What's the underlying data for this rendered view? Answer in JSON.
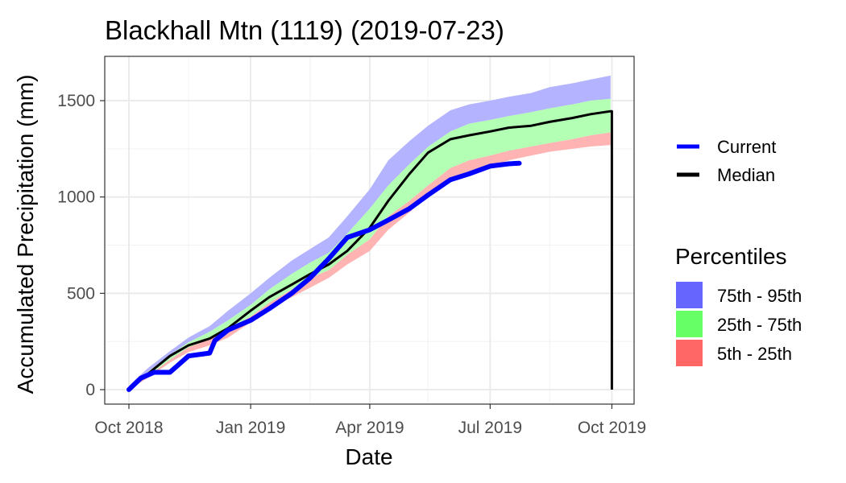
{
  "chart_data": {
    "type": "area",
    "title": "Blackhall Mtn (1119) (2019-07-23)",
    "xlabel": "Date",
    "ylabel": "Accumulated Precipitation (mm)",
    "x_range": [
      "2018-10-01",
      "2019-10-05"
    ],
    "ylim": [
      -75,
      1730
    ],
    "x_ticks": [
      {
        "date": "2018-10-01",
        "label": "Oct 2018"
      },
      {
        "date": "2019-01-01",
        "label": "Jan 2019"
      },
      {
        "date": "2019-04-01",
        "label": "Apr 2019"
      },
      {
        "date": "2019-07-01",
        "label": "Jul 2019"
      },
      {
        "date": "2019-10-01",
        "label": "Oct 2019"
      }
    ],
    "x_minor_ticks": [
      "2018-11-15",
      "2019-02-15",
      "2019-05-15",
      "2019-08-15"
    ],
    "y_ticks": [
      0,
      500,
      1000,
      1500
    ],
    "y_minor_ticks": [
      250,
      750,
      1250
    ],
    "grid": true,
    "legend_position": "right",
    "legend": {
      "lines": [
        {
          "name": "Current",
          "color": "#0000ff"
        },
        {
          "name": "Median",
          "color": "#000000"
        }
      ],
      "bands_title": "Percentiles",
      "bands": [
        {
          "name": "75th - 95th",
          "color": "#6666ff"
        },
        {
          "name": "25th - 75th",
          "color": "#66ff66"
        },
        {
          "name": "5th - 25th",
          "color": "#ff6666"
        }
      ]
    },
    "band_fill_colors": {
      "p75_p95": "#b3b3ff",
      "p25_p75": "#b3ffb3",
      "p5_p25": "#ffb3b3"
    },
    "dates": [
      "2018-10-01",
      "2018-10-15",
      "2018-11-01",
      "2018-11-15",
      "2018-12-01",
      "2018-12-15",
      "2019-01-01",
      "2019-01-15",
      "2019-02-01",
      "2019-02-15",
      "2019-03-01",
      "2019-03-15",
      "2019-04-01",
      "2019-04-15",
      "2019-05-01",
      "2019-05-15",
      "2019-06-01",
      "2019-06-15",
      "2019-07-01",
      "2019-07-15",
      "2019-08-01",
      "2019-08-15",
      "2019-09-01",
      "2019-09-15",
      "2019-09-30"
    ],
    "p5": [
      0,
      60,
      140,
      195,
      230,
      270,
      350,
      420,
      480,
      530,
      580,
      650,
      720,
      830,
      920,
      1010,
      1090,
      1130,
      1160,
      1190,
      1215,
      1235,
      1250,
      1262,
      1270
    ],
    "p25": [
      0,
      70,
      155,
      220,
      260,
      310,
      380,
      450,
      520,
      580,
      620,
      700,
      780,
      900,
      980,
      1060,
      1150,
      1190,
      1215,
      1240,
      1262,
      1280,
      1300,
      1320,
      1335
    ],
    "p75": [
      10,
      90,
      180,
      245,
      300,
      360,
      440,
      520,
      600,
      660,
      710,
      810,
      940,
      1060,
      1170,
      1260,
      1340,
      1380,
      1400,
      1420,
      1440,
      1460,
      1480,
      1500,
      1510
    ],
    "p95": [
      20,
      110,
      200,
      270,
      330,
      410,
      500,
      580,
      670,
      730,
      790,
      900,
      1040,
      1190,
      1290,
      1370,
      1450,
      1480,
      1500,
      1520,
      1540,
      1570,
      1590,
      1610,
      1630
    ],
    "median": [
      0,
      80,
      175,
      230,
      265,
      320,
      410,
      480,
      545,
      600,
      650,
      720,
      840,
      980,
      1120,
      1230,
      1300,
      1320,
      1340,
      1360,
      1370,
      1390,
      1410,
      1430,
      1445
    ],
    "median_end": {
      "date": "2019-10-01",
      "value": 0
    },
    "current": {
      "dates": [
        "2018-10-01",
        "2018-10-10",
        "2018-10-20",
        "2018-11-01",
        "2018-11-15",
        "2018-12-01",
        "2018-12-05",
        "2018-12-15",
        "2019-01-01",
        "2019-01-15",
        "2019-02-01",
        "2019-02-15",
        "2019-03-01",
        "2019-03-15",
        "2019-04-01",
        "2019-04-15",
        "2019-05-01",
        "2019-05-15",
        "2019-06-01",
        "2019-06-15",
        "2019-07-01",
        "2019-07-15",
        "2019-07-23"
      ],
      "values": [
        0,
        60,
        90,
        90,
        175,
        190,
        255,
        310,
        360,
        420,
        500,
        580,
        680,
        790,
        830,
        880,
        940,
        1010,
        1090,
        1120,
        1160,
        1172,
        1175
      ]
    }
  }
}
